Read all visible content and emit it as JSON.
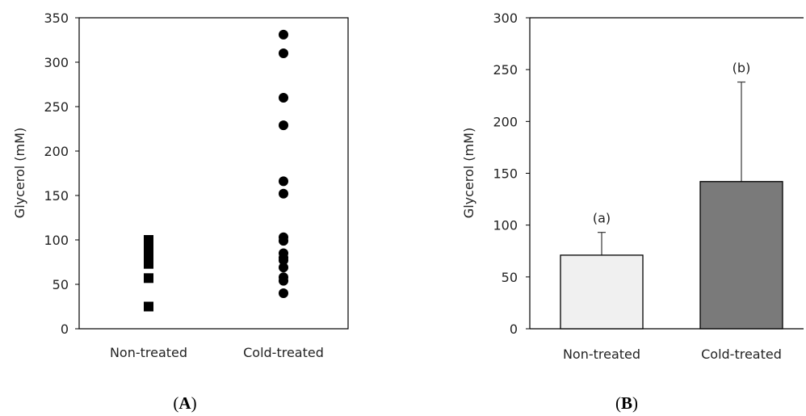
{
  "chart_data": [
    {
      "panel_label": "A",
      "type": "scatter",
      "ylabel": "Glycerol (mM)",
      "ylim": [
        0,
        350
      ],
      "yticks": [
        0,
        50,
        100,
        150,
        200,
        250,
        300,
        350
      ],
      "categories": [
        "Non-treated",
        "Cold-treated"
      ],
      "series": [
        {
          "category": "Non-treated",
          "marker": "square",
          "values": [
            100,
            95,
            90,
            85,
            80,
            76,
            73,
            57,
            25
          ]
        },
        {
          "category": "Cold-treated",
          "marker": "circle",
          "values": [
            331,
            310,
            260,
            229,
            166,
            152,
            103,
            99,
            85,
            80,
            77,
            69,
            58,
            54,
            40
          ]
        }
      ],
      "grid": false
    },
    {
      "panel_label": "B",
      "type": "bar",
      "ylabel": "Glycerol (mM)",
      "ylim": [
        0,
        300
      ],
      "yticks": [
        0,
        50,
        100,
        150,
        200,
        250,
        300
      ],
      "categories": [
        "Non-treated",
        "Cold-treated"
      ],
      "values": [
        71,
        142
      ],
      "error_upper": [
        22,
        96
      ],
      "annotations": [
        "(a)",
        "(b)"
      ],
      "bar_colors": [
        "#f0f0f0",
        "#7a7a7a"
      ],
      "grid": false
    }
  ]
}
